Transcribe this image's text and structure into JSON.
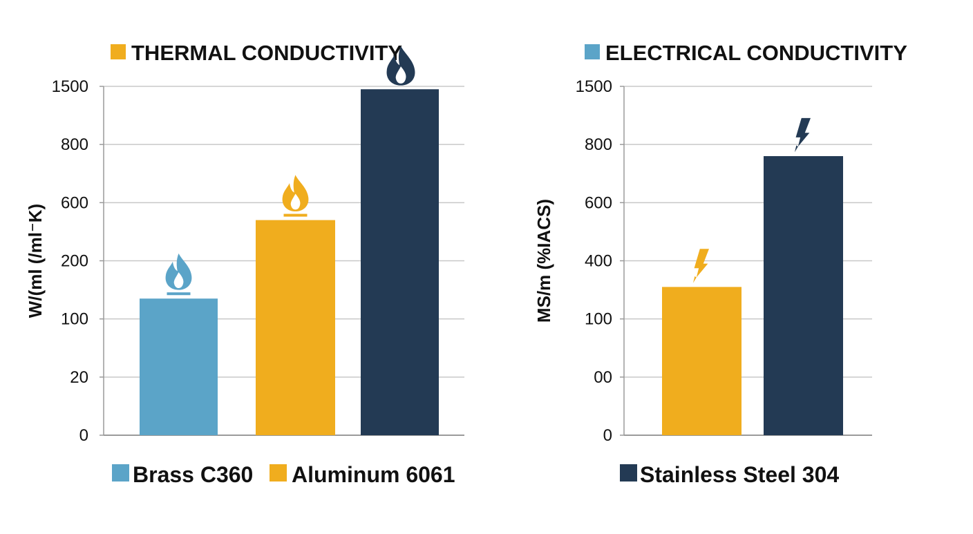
{
  "chart_data": [
    {
      "type": "bar",
      "title": "THERMAL CONDUCTIVITY",
      "title_swatch_color": "#f0ad1e",
      "title_icon": "flame-icon",
      "ylabel": "W/(ml (/ml⁻K)",
      "yticks": [
        "1500",
        "800",
        "600",
        "200",
        "100",
        "20",
        "0"
      ],
      "ylim_index": [
        0,
        6
      ],
      "categories": [
        "Brass C360",
        "Aluminum 6061",
        "Stainless Steel 304"
      ],
      "values_index": [
        2.35,
        3.7,
        5.95
      ],
      "colors": [
        "#5ba4c8",
        "#f0ad1e",
        "#233a54"
      ],
      "bar_icons": [
        "flame-icon",
        "flame-icon",
        "flame-icon"
      ],
      "grid": true
    },
    {
      "type": "bar",
      "title": "ELECTRICAL CONDUCTIVITY",
      "title_swatch_color": "#5ba4c8",
      "ylabel": "MS/m (%IACS)",
      "yticks": [
        "1500",
        "800",
        "600",
        "400",
        "100",
        "00",
        "0"
      ],
      "ylim_index": [
        0,
        6
      ],
      "categories": [
        "Aluminum 6061",
        "Stainless Steel 304"
      ],
      "values_index": [
        2.55,
        4.8
      ],
      "colors": [
        "#f0ad1e",
        "#233a54"
      ],
      "bar_icons": [
        "lightning-icon",
        "lightning-icon"
      ],
      "grid": true
    }
  ],
  "legend": [
    {
      "label": "Brass C360",
      "color": "#5ba4c8"
    },
    {
      "label": "Aluminum 6061",
      "color": "#f0ad1e"
    },
    {
      "label": "Stainless Steel 304",
      "color": "#233a54"
    }
  ]
}
